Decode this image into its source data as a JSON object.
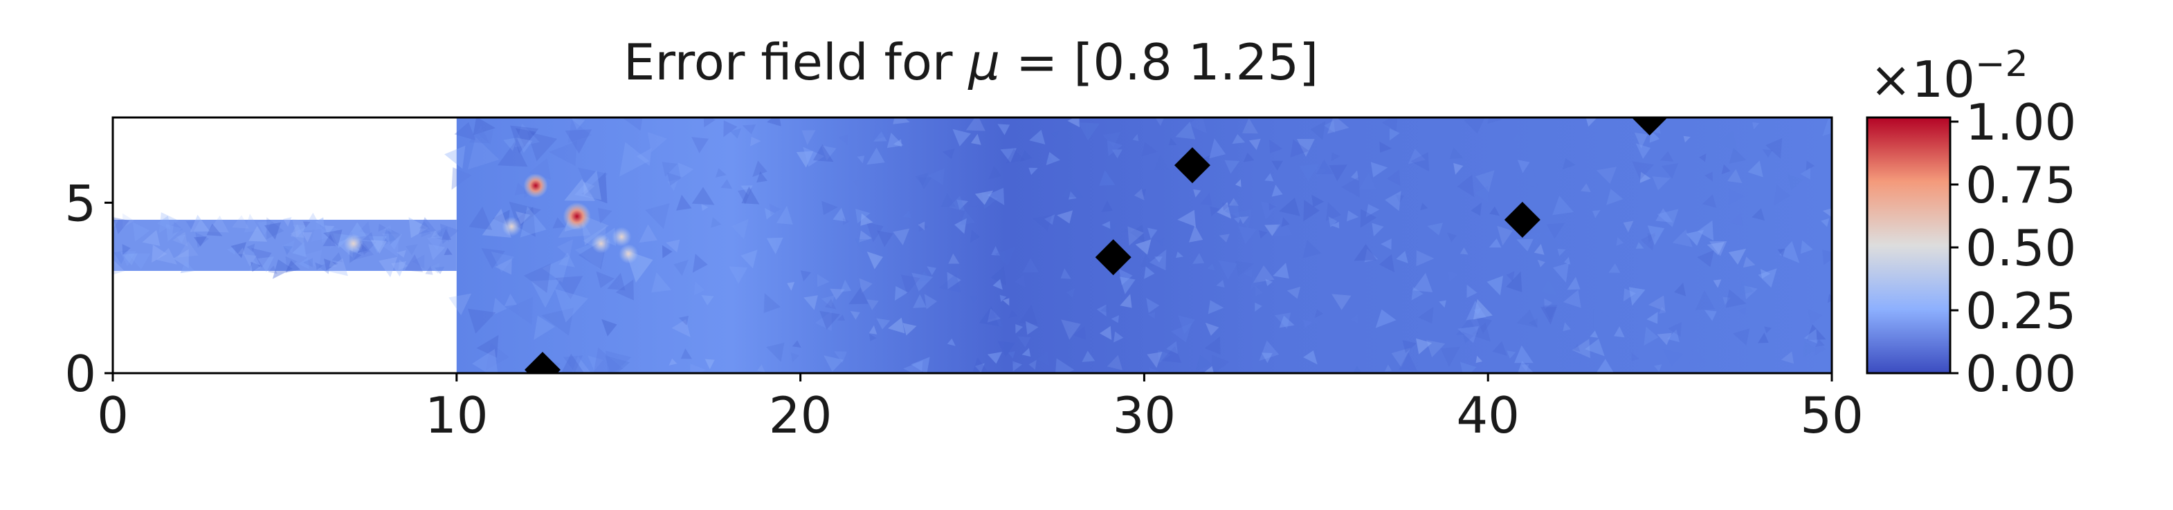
{
  "chart_data": {
    "type": "heatmap",
    "title_prefix": "Error field for ",
    "title_symbol": "μ",
    "title_suffix": " = [0.8  1.25]",
    "xlim": [
      0,
      50
    ],
    "ylim": [
      0,
      7.5
    ],
    "x_ticks": [
      0,
      10,
      20,
      30,
      40,
      50
    ],
    "y_ticks": [
      0,
      5
    ],
    "domain": {
      "inlet_channel": {
        "x": [
          0,
          10
        ],
        "y": [
          3,
          4.5
        ]
      },
      "main_chamber": {
        "x": [
          10,
          50
        ],
        "y": [
          0,
          7.5
        ]
      }
    },
    "markers": [
      {
        "x": 12.5,
        "y": 0.1
      },
      {
        "x": 29.1,
        "y": 3.4
      },
      {
        "x": 31.4,
        "y": 6.1
      },
      {
        "x": 41.0,
        "y": 4.5
      },
      {
        "x": 44.7,
        "y": 7.5
      }
    ],
    "marker_color": "#000000",
    "hotspots": [
      {
        "x": 13.5,
        "y": 4.6,
        "value": 1.0
      },
      {
        "x": 12.3,
        "y": 5.5,
        "value": 0.85
      },
      {
        "x": 14.2,
        "y": 3.8,
        "value": 0.45
      },
      {
        "x": 14.8,
        "y": 4.0,
        "value": 0.4
      },
      {
        "x": 11.6,
        "y": 4.3,
        "value": 0.35
      },
      {
        "x": 7.0,
        "y": 3.8,
        "value": 0.35
      },
      {
        "x": 15.0,
        "y": 3.5,
        "value": 0.35
      }
    ],
    "colorbar": {
      "colormap": "coolwarm",
      "vmin": 0.0,
      "vmax": 1.0,
      "ticks": [
        "0.00",
        "0.25",
        "0.50",
        "0.75",
        "1.00"
      ],
      "exponent_base": "×10",
      "exponent_power": "−2"
    },
    "grid": false
  }
}
